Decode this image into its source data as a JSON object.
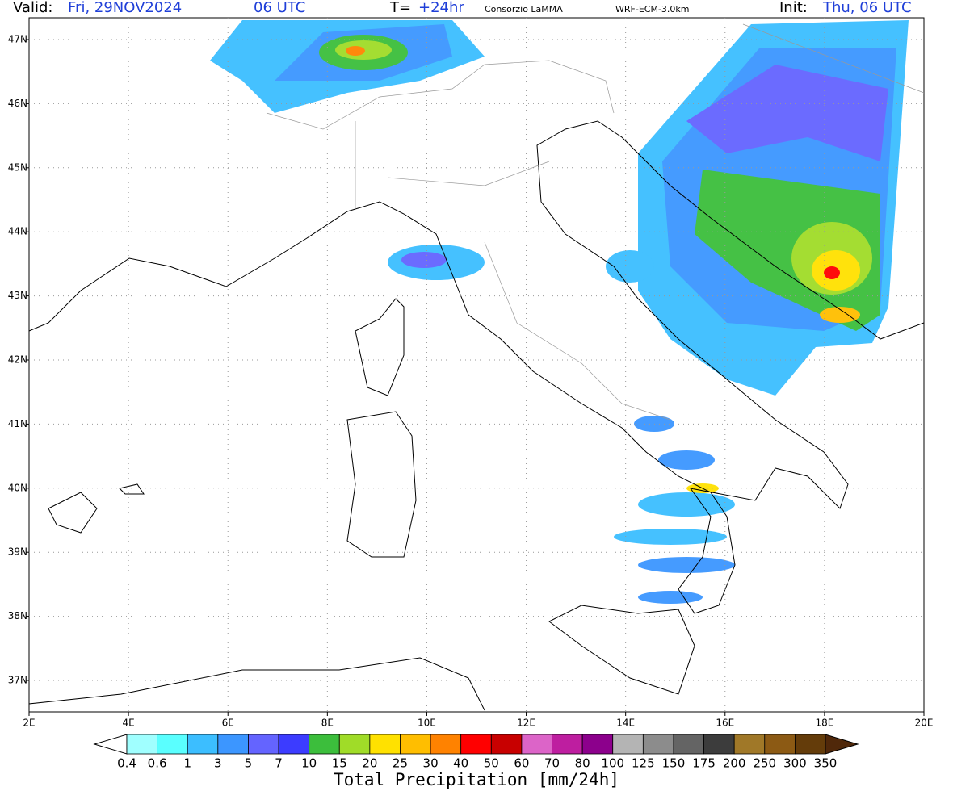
{
  "header": {
    "valid_label": "Valid:",
    "valid_time": "Fri, 29NOV2024",
    "valid_hour": "06 UTC",
    "lead_label": "T=",
    "lead": "+24hr",
    "source": "Consorzio LaMMA",
    "model": "WRF-ECM-3.0km",
    "init_label": "Init:",
    "init_time": "Thu, 06 UTC"
  },
  "map": {
    "lat_labels": [
      "47N",
      "46N",
      "45N",
      "44N",
      "43N",
      "42N",
      "41N",
      "40N",
      "39N",
      "38N",
      "37N"
    ],
    "lon_labels": [
      "2E",
      "4E",
      "6E",
      "8E",
      "10E",
      "12E",
      "14E",
      "16E",
      "18E",
      "20E"
    ]
  },
  "colorbar": {
    "levels": [
      0.4,
      0.6,
      1,
      3,
      5,
      7,
      10,
      15,
      20,
      25,
      30,
      40,
      50,
      60,
      70,
      80,
      100,
      125,
      150,
      175,
      200,
      250,
      300,
      350
    ],
    "under_color": "#ffffff",
    "colors": [
      "#a0ffff",
      "#5affff",
      "#3cbeff",
      "#3c96ff",
      "#6464ff",
      "#3c3cff",
      "#3cbe3c",
      "#a0dc28",
      "#ffe100",
      "#ffbe00",
      "#ff8200",
      "#ff0000",
      "#c80000",
      "#dc64c8",
      "#be1ea0",
      "#8c008c",
      "#b4b4b4",
      "#8c8c8c",
      "#646464",
      "#3c3c3c",
      "#a07828",
      "#8c5a14",
      "#643c0a"
    ],
    "over_color": "#50280a",
    "title": "Total Precipitation [mm/24h]"
  }
}
